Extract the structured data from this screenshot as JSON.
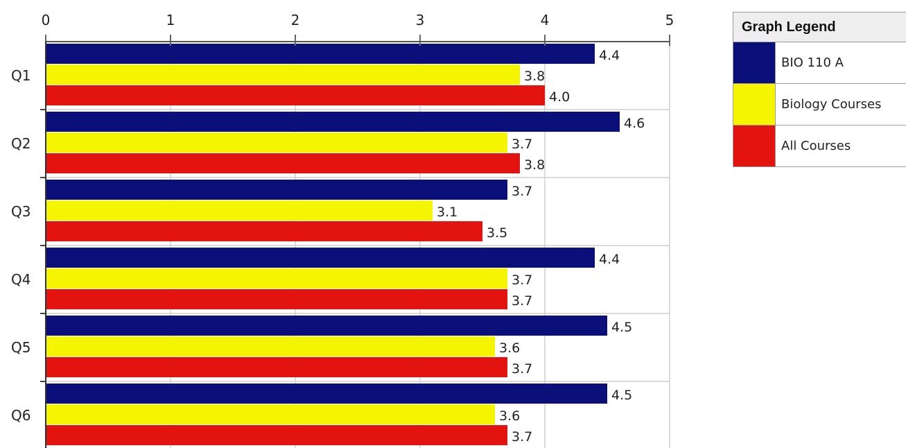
{
  "chart_data": {
    "type": "bar",
    "orientation": "horizontal",
    "categories": [
      "Q1",
      "Q2",
      "Q3",
      "Q4",
      "Q5",
      "Q6"
    ],
    "series": [
      {
        "name": "BIO 110 A",
        "color": "#0a0f7a",
        "values": [
          4.4,
          4.6,
          3.7,
          4.4,
          4.5,
          4.5
        ],
        "labels": [
          "4.4",
          "4.6",
          "3.7",
          "4.4",
          "4.5",
          "4.5"
        ]
      },
      {
        "name": "Biology Courses",
        "color": "#f5f500",
        "values": [
          3.8,
          3.7,
          3.1,
          3.7,
          3.6,
          3.6
        ],
        "labels": [
          "3.8",
          "3.7",
          "3.1",
          "3.7",
          "3.6",
          "3.6"
        ]
      },
      {
        "name": "All Courses",
        "color": "#e3140f",
        "values": [
          4.0,
          3.8,
          3.5,
          3.7,
          3.7,
          3.7
        ],
        "labels": [
          "4.0",
          "3.8",
          "3.5",
          "3.7",
          "3.7",
          "3.7"
        ]
      }
    ],
    "xlim": [
      0,
      5
    ],
    "xticks": [
      "0",
      "1",
      "2",
      "3",
      "4",
      "5"
    ],
    "x_axis_position": "top",
    "grid": true
  },
  "legend": {
    "title": "Graph Legend",
    "items": [
      {
        "label": "BIO 110 A",
        "color": "#0a0f7a"
      },
      {
        "label": "Biology Courses",
        "color": "#f5f500"
      },
      {
        "label": "All Courses",
        "color": "#e3140f"
      }
    ]
  }
}
